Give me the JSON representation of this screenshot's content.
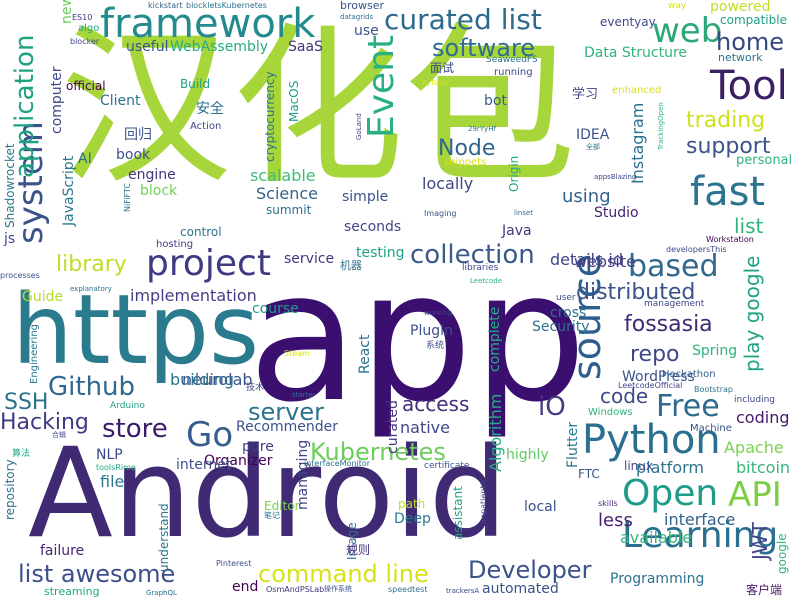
{
  "words": [
    {
      "text": "Android",
      "color": "#3f2a73"
    },
    {
      "text": "app",
      "color": "#3b0f6f"
    },
    {
      "text": "汉化包",
      "color": "#a6d63a"
    },
    {
      "text": "https",
      "color": "#2b7b8e"
    },
    {
      "text": "Python",
      "color": "#2a6f8f"
    },
    {
      "text": "framework",
      "color": "#238a8d"
    },
    {
      "text": "Tool",
      "color": "#3a1f63"
    },
    {
      "text": "API",
      "color": "#7ccf45"
    },
    {
      "text": "fast",
      "color": "#2a748e"
    },
    {
      "text": "Open",
      "color": "#1f9c89"
    },
    {
      "text": "source",
      "color": "#2c5f8e"
    },
    {
      "text": "project",
      "color": "#3f3b83"
    },
    {
      "text": "Learning",
      "color": "#2a6f8f"
    },
    {
      "text": "Event",
      "color": "#2ab07f"
    },
    {
      "text": "curated list",
      "color": "#2e6a8e"
    },
    {
      "text": "system",
      "color": "#3b528b"
    },
    {
      "text": "web",
      "color": "#2aa877"
    },
    {
      "text": "application",
      "color": "#1ea27f"
    },
    {
      "text": "home",
      "color": "#35497f"
    },
    {
      "text": "software",
      "color": "#2f6c8e"
    },
    {
      "text": "collection",
      "color": "#3a5a8c"
    },
    {
      "text": "based",
      "color": "#31688e"
    },
    {
      "text": "Go",
      "color": "#365d8d"
    },
    {
      "text": "Kubernetes",
      "color": "#6ccd5a"
    },
    {
      "text": "command line",
      "color": "#d7e219"
    },
    {
      "text": "list awesome",
      "color": "#3c4f8a"
    },
    {
      "text": "Developer",
      "color": "#3b528b"
    },
    {
      "text": "Free",
      "color": "#306a8e"
    },
    {
      "text": "Github",
      "color": "#31688e"
    },
    {
      "text": "server",
      "color": "#2c738e"
    },
    {
      "text": "store",
      "color": "#3b1c6b"
    },
    {
      "text": "fossasia",
      "color": "#3f2a73"
    },
    {
      "text": "trading",
      "color": "#d0e11c"
    },
    {
      "text": "support",
      "color": "#3b528b"
    },
    {
      "text": "Node",
      "color": "#32648e"
    },
    {
      "text": "library",
      "color": "#bddf26"
    },
    {
      "text": "distributed",
      "color": "#3b528b"
    },
    {
      "text": "repo",
      "color": "#3f4788"
    },
    {
      "text": "play google",
      "color": "#20a386"
    },
    {
      "text": "iO",
      "color": "#443a83"
    },
    {
      "text": "code",
      "color": "#3e4989"
    },
    {
      "text": "access",
      "color": "#472d7b"
    },
    {
      "text": "SSH",
      "color": "#2c728e"
    },
    {
      "text": "Hacking",
      "color": "#3f3b83"
    },
    {
      "text": "implementation",
      "color": "#433e85"
    },
    {
      "text": "Instagram",
      "color": "#2d708e"
    },
    {
      "text": "locally",
      "color": "#3f4788"
    },
    {
      "text": "JWT",
      "color": "#414487"
    },
    {
      "text": "Science",
      "color": "#33638d"
    },
    {
      "text": "scalable",
      "color": "#3ebc74"
    },
    {
      "text": "using",
      "color": "#33638d"
    },
    {
      "text": "details id",
      "color": "#414487"
    },
    {
      "text": "neurolab",
      "color": "#3b528b"
    },
    {
      "text": "native",
      "color": "#3f4788"
    },
    {
      "text": "interface",
      "color": "#33638d"
    },
    {
      "text": "building",
      "color": "#2c738e"
    },
    {
      "text": "website",
      "color": "#433e85"
    },
    {
      "text": "list",
      "color": "#2fb47c"
    },
    {
      "text": "Algorithm",
      "color": "#25ac82"
    },
    {
      "text": "Apache",
      "color": "#7ad151"
    },
    {
      "text": "bitcoin",
      "color": "#35b779"
    },
    {
      "text": "platform",
      "color": "#2c738e"
    },
    {
      "text": "coding",
      "color": "#48186a"
    },
    {
      "text": "available",
      "color": "#35b779"
    },
    {
      "text": "less",
      "color": "#481f70"
    },
    {
      "text": "Programming",
      "color": "#2c728e"
    },
    {
      "text": "Recommender",
      "color": "#3b528b"
    },
    {
      "text": "Organizer",
      "color": "#440154"
    },
    {
      "text": "NLP",
      "color": "#3f4788"
    },
    {
      "text": "file",
      "color": "#2a788e"
    },
    {
      "text": "internet",
      "color": "#3b528b"
    },
    {
      "text": "testing",
      "color": "#1fa088"
    },
    {
      "text": "service",
      "color": "#46337e"
    },
    {
      "text": "Spring",
      "color": "#2fb47c"
    },
    {
      "text": "WordPress",
      "color": "#3b528b"
    },
    {
      "text": "Hackathon",
      "color": "#33638d"
    },
    {
      "text": "Plugin",
      "color": "#3b528b"
    },
    {
      "text": "Security",
      "color": "#2c728e"
    },
    {
      "text": "cross",
      "color": "#2c728e"
    },
    {
      "text": "complete",
      "color": "#25ac82"
    },
    {
      "text": "React",
      "color": "#2c728e"
    },
    {
      "text": "curated",
      "color": "#443a83"
    },
    {
      "text": "managing",
      "color": "#3f4788"
    },
    {
      "text": "Flutter",
      "color": "#2a788e"
    },
    {
      "text": "linux",
      "color": "#3f4788"
    },
    {
      "text": "highly",
      "color": "#5ec962"
    },
    {
      "text": "FTC",
      "color": "#38588c"
    },
    {
      "text": "local",
      "color": "#3b528b"
    },
    {
      "text": "Deep",
      "color": "#2a788e"
    },
    {
      "text": "path",
      "color": "#bddf26"
    },
    {
      "text": "Editor",
      "color": "#7ad151"
    },
    {
      "text": "Image",
      "color": "#2f6c8e"
    },
    {
      "text": "assistant",
      "color": "#20a386"
    },
    {
      "text": "understand",
      "color": "#2c728e"
    },
    {
      "text": "failure",
      "color": "#482475"
    },
    {
      "text": "end",
      "color": "#440154"
    },
    {
      "text": "automated",
      "color": "#3b528b"
    },
    {
      "text": "streaming",
      "color": "#22a884"
    },
    {
      "text": "Guide",
      "color": "#b5de2b"
    },
    {
      "text": "Engineering",
      "color": "#2a788e"
    },
    {
      "text": "repository",
      "color": "#2c728e"
    },
    {
      "text": "Arduino",
      "color": "#1fa088"
    },
    {
      "text": "pure",
      "color": "#433e85"
    },
    {
      "text": "course",
      "color": "#1f9a8a"
    },
    {
      "text": "JavaScript",
      "color": "#2a788e"
    },
    {
      "text": "AI",
      "color": "#2c728e"
    },
    {
      "text": "engine",
      "color": "#46337e"
    },
    {
      "text": "block",
      "color": "#73d056"
    },
    {
      "text": "book",
      "color": "#3b528b"
    },
    {
      "text": "Client",
      "color": "#2c728e"
    },
    {
      "text": "computer",
      "color": "#3f4788"
    },
    {
      "text": "official",
      "color": "#440154"
    },
    {
      "text": "useful",
      "color": "#38588c"
    },
    {
      "text": "WebAssembly",
      "color": "#25ac82"
    },
    {
      "text": "SaaS",
      "color": "#46337e"
    },
    {
      "text": "Data Structure",
      "color": "#2fb47c"
    },
    {
      "text": "Build",
      "color": "#1fa088"
    },
    {
      "text": "Action",
      "color": "#3f4788"
    },
    {
      "text": "cryptocurrency",
      "color": "#2c728e"
    },
    {
      "text": "MacOS",
      "color": "#1fa088"
    },
    {
      "text": "summit",
      "color": "#2c728e"
    },
    {
      "text": "simple",
      "color": "#3b528b"
    },
    {
      "text": "seconds",
      "color": "#3f4788"
    },
    {
      "text": "control",
      "color": "#2c728e"
    },
    {
      "text": "hosting",
      "color": "#443a83"
    },
    {
      "text": "Java",
      "color": "#46337e"
    },
    {
      "text": "Origin",
      "color": "#22a884"
    },
    {
      "text": "Studio",
      "color": "#481f70"
    },
    {
      "text": "IDEA",
      "color": "#3b528b"
    },
    {
      "text": "bot",
      "color": "#365c8d"
    },
    {
      "text": "eventyay",
      "color": "#3f4788"
    },
    {
      "text": "compatible",
      "color": "#1fa088"
    },
    {
      "text": "powered",
      "color": "#bddf26"
    },
    {
      "text": "network",
      "color": "#2c728e"
    },
    {
      "text": "enhanced",
      "color": "#d8e219"
    },
    {
      "text": "personal",
      "color": "#2fb47c"
    },
    {
      "text": "use",
      "color": "#3b528b"
    },
    {
      "text": "browser",
      "color": "#3b528b"
    },
    {
      "text": "running",
      "color": "#3f4788"
    },
    {
      "text": "SeaweedFS",
      "color": "#2c728e"
    },
    {
      "text": "datagrids",
      "color": "#2c728e"
    },
    {
      "text": "blockletsKubernetes",
      "color": "#2c728e"
    },
    {
      "text": "kickstart",
      "color": "#33638d"
    },
    {
      "text": "ES10",
      "color": "#46337e"
    },
    {
      "text": "algo",
      "color": "#22a884"
    },
    {
      "text": "blocker",
      "color": "#3f4788"
    },
    {
      "text": "new",
      "color": "#6ccd5a"
    },
    {
      "text": "js",
      "color": "#3f4788"
    },
    {
      "text": "Shadowrocket",
      "color": "#2a788e"
    },
    {
      "text": "processes",
      "color": "#3b528b"
    },
    {
      "text": "explanatory",
      "color": "#2c728e"
    },
    {
      "text": "NiFiFTC",
      "color": "#2c728e"
    },
    {
      "text": "toolsRime",
      "color": "#22a884"
    },
    {
      "text": "interfaceMonitor",
      "color": "#2c728e"
    },
    {
      "text": "certificate",
      "color": "#3b528b"
    },
    {
      "text": "impatientA",
      "color": "#3f4788"
    },
    {
      "text": "skills",
      "color": "#481f70"
    },
    {
      "text": "Windows",
      "color": "#2fb47c"
    },
    {
      "text": "Machine",
      "color": "#3b528b"
    },
    {
      "text": "including",
      "color": "#3f4788"
    },
    {
      "text": "Bootstrap",
      "color": "#2c728e"
    },
    {
      "text": "LeetcodeOfficial",
      "color": "#3f4788"
    },
    {
      "text": "management",
      "color": "#3f4788"
    },
    {
      "text": "user",
      "color": "#3b528b"
    },
    {
      "text": "working",
      "color": "#3f4788"
    },
    {
      "text": "Steam",
      "color": "#d8e219"
    },
    {
      "text": "starter",
      "color": "#2c728e"
    },
    {
      "text": "Leetcode",
      "color": "#2fb47c"
    },
    {
      "text": "libraries",
      "color": "#3f4788"
    },
    {
      "text": "Imaging",
      "color": "#3b528b"
    },
    {
      "text": "linset",
      "color": "#2c728e"
    },
    {
      "text": "developersThis",
      "color": "#3f4788"
    },
    {
      "text": "Workstation",
      "color": "#440154"
    },
    {
      "text": "appsBlazing",
      "color": "#3f4788"
    },
    {
      "text": "snippets",
      "color": "#d8e219"
    },
    {
      "text": "GoLand",
      "color": "#3f4788"
    },
    {
      "text": "29rYyHf",
      "color": "#2c728e"
    },
    {
      "text": "TrackingOpen",
      "color": "#2fb47c"
    },
    {
      "text": "PyTorch",
      "color": "#d8e219"
    },
    {
      "text": "way",
      "color": "#d8e219"
    },
    {
      "text": "GraphQL",
      "color": "#2c728e"
    },
    {
      "text": "OsmAndPSLab",
      "color": "#46337e"
    },
    {
      "text": "speedtest",
      "color": "#2c728e"
    },
    {
      "text": "trackersA",
      "color": "#3f4788"
    },
    {
      "text": "Pinterest",
      "color": "#3b528b"
    },
    {
      "text": "安全",
      "color": "#2c728e"
    },
    {
      "text": "回归",
      "color": "#3b528b"
    },
    {
      "text": "学习",
      "color": "#3f4788"
    },
    {
      "text": "面试",
      "color": "#3f4788"
    },
    {
      "text": "机器",
      "color": "#2c728e"
    },
    {
      "text": "技术",
      "color": "#3f4788"
    },
    {
      "text": "系统",
      "color": "#3b528b"
    },
    {
      "text": "规则",
      "color": "#46337e"
    },
    {
      "text": "客户端",
      "color": "#48186a"
    },
    {
      "text": "算法",
      "color": "#22a884"
    },
    {
      "text": "笔记",
      "color": "#2c728e"
    },
    {
      "text": "合辑",
      "color": "#3f4788"
    },
    {
      "text": "操作系统",
      "color": "#3b528b"
    },
    {
      "text": "google",
      "color": "#2fb47c"
    },
    {
      "text": "全部",
      "color": "#2c728e"
    }
  ]
}
